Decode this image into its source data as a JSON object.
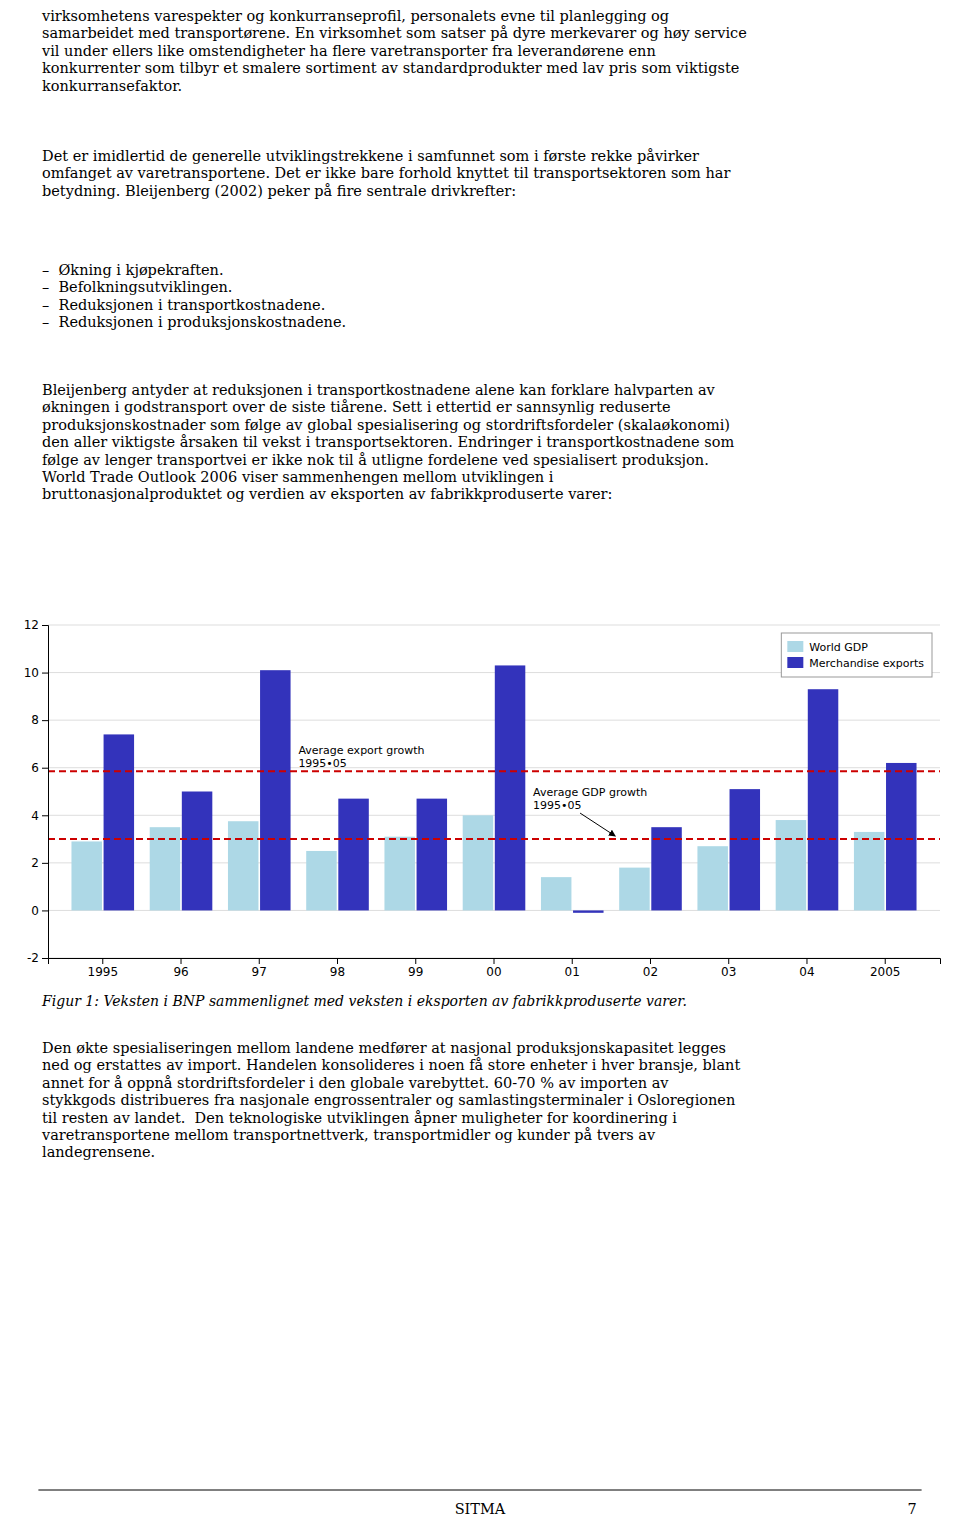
{
  "chart_data": {
    "type": "bar",
    "categories": [
      "1995",
      "96",
      "97",
      "98",
      "99",
      "00",
      "01",
      "02",
      "03",
      "04",
      "2005"
    ],
    "series": [
      {
        "name": "World GDP",
        "color": "#ADD8E6",
        "values": [
          2.9,
          3.5,
          3.75,
          2.5,
          3.1,
          4.0,
          1.4,
          1.8,
          2.7,
          3.8,
          3.3
        ]
      },
      {
        "name": "Merchandise exports",
        "color": "#3333BB",
        "values": [
          7.4,
          5.0,
          10.1,
          4.7,
          4.7,
          10.3,
          -0.1,
          3.5,
          5.1,
          9.3,
          6.2
        ]
      }
    ],
    "annotations": [
      {
        "text": "Average export growth\n1995•05",
        "y": 5.85,
        "color": "#CC0000"
      },
      {
        "text": "Average GDP growth\n1995•05",
        "y": 3.0,
        "color": "#CC0000"
      }
    ],
    "ylim": [
      -2,
      12
    ],
    "yticks": [
      -2,
      0,
      2,
      4,
      6,
      8,
      10,
      12
    ],
    "grid": true,
    "legend": "upper right"
  },
  "page": {
    "paragraphs_before_figure": [
      "virksomhetens varespekter og konkurranseprofil, personalets evne til planlegging og\nsamarbeidet med transportørene. En virksomhet som satser på dyre merkevarer og høy service\nvil under ellers like omstendigheter ha flere varetransporter fra leverandørene enn\nkonkurrenter som tilbyr et smalere sortiment av standardprodukter med lav pris som viktigste\nkonkurransefaktor.",
      "Det er imidlertid de generelle utviklingstrekkene i samfunnet som i første rekke påvirker\nomfanget av varetransportene. Det er ikke bare forhold knyttet til transportsektoren som har\nbetydning. Bleijenberg (2002) peker på fire sentrale drivkrefter:",
      "–  Økning i kjøpekraften.\n–  Befolkningsutviklingen.\n–  Reduksjonen i transportkostnadene.\n–  Reduksjonen i produksjonskostnadene.",
      "Bleijenberg antyder at reduksjonen i transportkostnadene alene kan forklare halvparten av\nøkningen i godstransport over de siste tiårene. Sett i ettertid er sannsynlig reduserte\nproduksjonskostnader som følge av global spesialisering og stordriftsfordeler (skalaøkonomi)\nden aller viktigste årsaken til vekst i transportsektoren. Endringer i transportkostnadene som\nfølge av lenger transportvei er ikke nok til å utligne fordelene ved spesialisert produksjon.\nWorld Trade Outlook 2006 viser sammenhengen mellom utviklingen i\nbruttonasjonalproduktet og verdien av eksporten av fabrikkproduserte varer:"
    ],
    "caption": "Figur 1: Veksten i BNP sammenlignet med veksten i eksporten av fabrikkproduserte varer.",
    "paragraphs_after_figure": [
      "Den økte spesialiseringen mellom landene medfører at nasjonal produksjonskapasitet legges\nned og erstattes av import. Handelen konsolideres i noen få store enheter i hver bransje, blant\nannet for å oppnå stordriftsfordeler i den globale varebyttet. 60-70 % av importen av\nstykkgods distribueres fra nasjonale engrossentraler og samlastingsterminaler i Osloregionen\ntil resten av landet.  Den teknologiske utviklingen åpner muligheter for koordinering i\nvaretransportene mellom transportnettverk, transportmidler og kunder på tvers av\nlandegrensene."
    ],
    "footer": "SITMA",
    "page_number": "7"
  }
}
